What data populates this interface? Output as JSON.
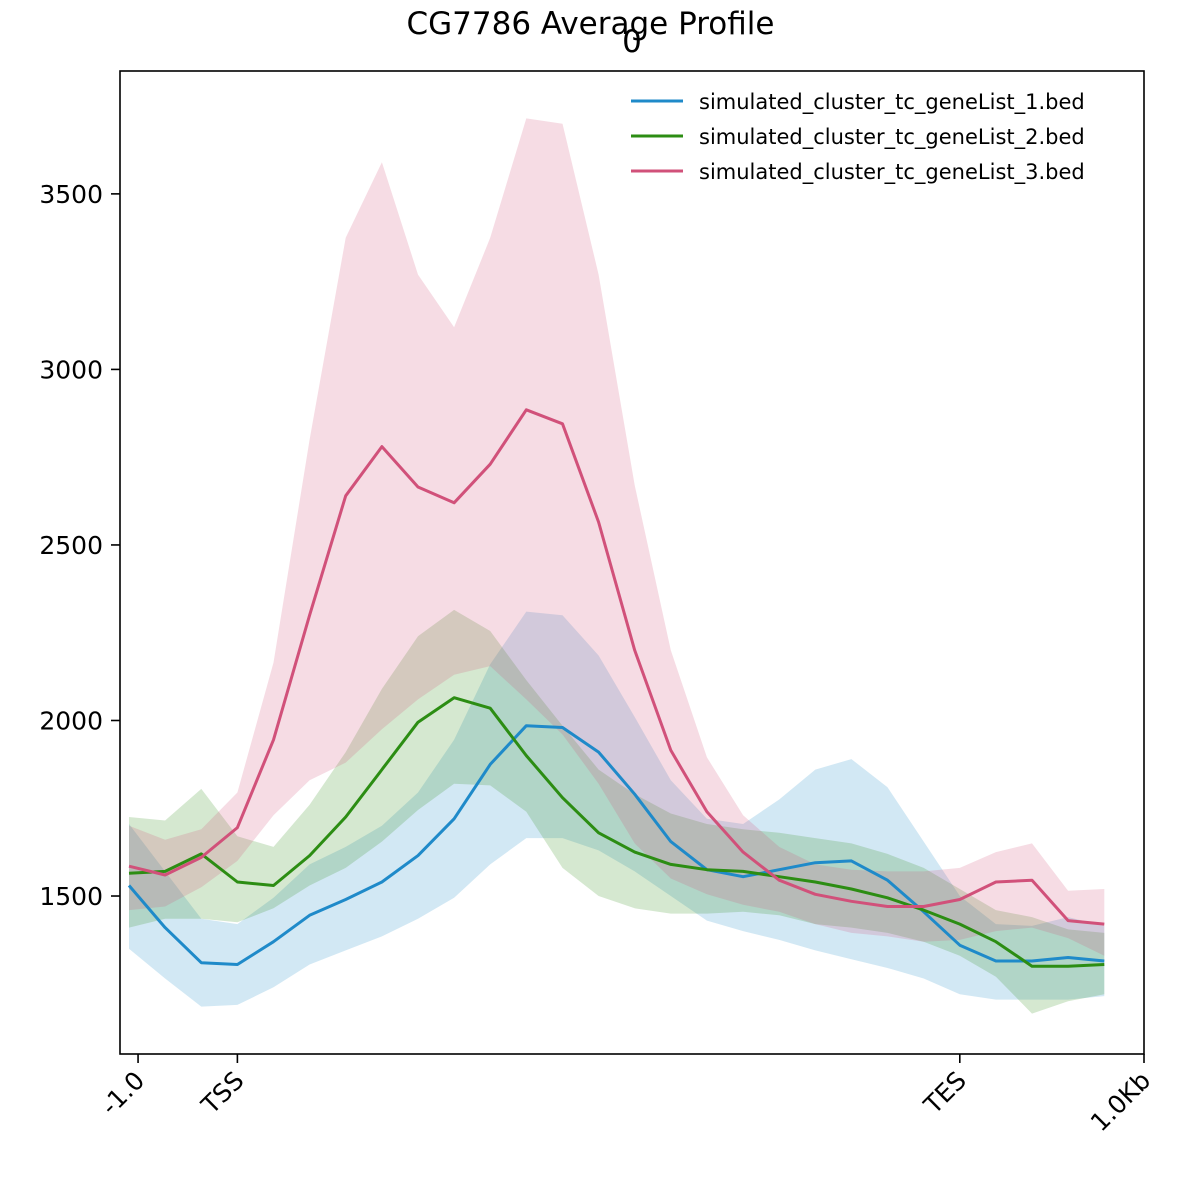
{
  "chart_data": {
    "type": "line",
    "title": "CG7786 Average Profile",
    "subplot_label": "0",
    "xlabel": "",
    "ylabel": "",
    "ylim": [
      1050,
      3850
    ],
    "xlim": [
      -0.25,
      28.1
    ],
    "grid": false,
    "legend_position": "top-right",
    "x": [
      0,
      1,
      2,
      3,
      4,
      5,
      6,
      7,
      8,
      9,
      10,
      11,
      12,
      13,
      14,
      15,
      16,
      17,
      18,
      19,
      20,
      21,
      22,
      23,
      24,
      25,
      26,
      27
    ],
    "x_ticks": [
      {
        "pos": 0.25,
        "label": "-1.0"
      },
      {
        "pos": 3.0,
        "label": "TSS"
      },
      {
        "pos": 23.0,
        "label": "TES"
      },
      {
        "pos": 28.1,
        "label": "1.0Kb"
      }
    ],
    "y_ticks": [
      1500,
      2000,
      2500,
      3000,
      3500
    ],
    "series": [
      {
        "name": "simulated_cluster_tc_geneList_1.bed",
        "color": "#1f8ac9",
        "values": [
          1530,
          1410,
          1310,
          1305,
          1370,
          1445,
          1490,
          1540,
          1615,
          1720,
          1875,
          1985,
          1980,
          1910,
          1790,
          1655,
          1575,
          1555,
          1575,
          1595,
          1600,
          1545,
          1455,
          1360,
          1315,
          1315,
          1325,
          1315
        ],
        "lower": [
          1350,
          1265,
          1185,
          1190,
          1240,
          1305,
          1345,
          1385,
          1435,
          1495,
          1590,
          1665,
          1665,
          1630,
          1570,
          1500,
          1430,
          1400,
          1375,
          1345,
          1320,
          1295,
          1265,
          1220,
          1205,
          1205,
          1205,
          1215
        ],
        "upper": [
          1705,
          1570,
          1435,
          1420,
          1495,
          1590,
          1640,
          1700,
          1795,
          1945,
          2160,
          2310,
          2300,
          2185,
          2010,
          1830,
          1720,
          1705,
          1775,
          1860,
          1890,
          1810,
          1655,
          1500,
          1420,
          1415,
          1440,
          1415
        ]
      },
      {
        "name": "simulated_cluster_tc_geneList_2.bed",
        "color": "#2c8d13",
        "values": [
          1565,
          1570,
          1620,
          1540,
          1530,
          1615,
          1725,
          1860,
          1995,
          2065,
          2035,
          1900,
          1780,
          1680,
          1625,
          1590,
          1575,
          1570,
          1555,
          1540,
          1520,
          1495,
          1460,
          1420,
          1370,
          1300,
          1300,
          1305
        ],
        "lower": [
          1410,
          1435,
          1435,
          1425,
          1465,
          1530,
          1580,
          1655,
          1745,
          1820,
          1815,
          1740,
          1580,
          1500,
          1465,
          1450,
          1450,
          1455,
          1445,
          1420,
          1410,
          1395,
          1370,
          1330,
          1270,
          1165,
          1200,
          1220
        ],
        "upper": [
          1725,
          1715,
          1805,
          1670,
          1640,
          1760,
          1910,
          2090,
          2240,
          2315,
          2255,
          2115,
          1985,
          1860,
          1790,
          1735,
          1705,
          1690,
          1680,
          1665,
          1650,
          1620,
          1580,
          1520,
          1460,
          1440,
          1405,
          1395
        ]
      },
      {
        "name": "simulated_cluster_tc_geneList_3.bed",
        "color": "#d1517a",
        "values": [
          1585,
          1560,
          1610,
          1695,
          1945,
          2300,
          2640,
          2780,
          2665,
          2620,
          2730,
          2885,
          2845,
          2565,
          2200,
          1915,
          1740,
          1625,
          1545,
          1505,
          1485,
          1470,
          1470,
          1490,
          1540,
          1545,
          1430,
          1420
        ],
        "lower": [
          1460,
          1470,
          1525,
          1600,
          1730,
          1830,
          1880,
          1975,
          2060,
          2130,
          2155,
          2060,
          1960,
          1820,
          1650,
          1550,
          1505,
          1475,
          1455,
          1420,
          1395,
          1385,
          1370,
          1375,
          1400,
          1410,
          1380,
          1330
        ],
        "upper": [
          1700,
          1660,
          1690,
          1795,
          2165,
          2800,
          3375,
          3590,
          3270,
          3120,
          3375,
          3715,
          3700,
          3270,
          2670,
          2200,
          1895,
          1730,
          1640,
          1590,
          1575,
          1570,
          1570,
          1580,
          1625,
          1650,
          1515,
          1520
        ]
      }
    ]
  }
}
